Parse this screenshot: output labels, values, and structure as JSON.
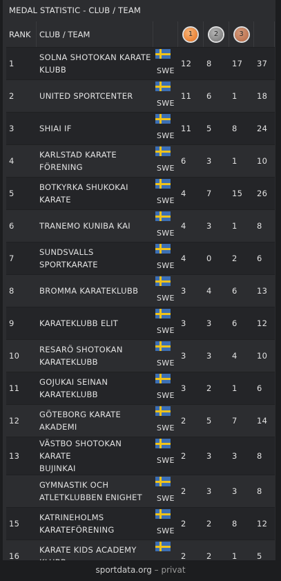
{
  "title": "MEDAL STATISTIC - CLUB / TEAM",
  "headers": {
    "rank": "RANK",
    "team": "CLUB / TEAM",
    "gold": "1",
    "silver": "2",
    "bronze": "3"
  },
  "medal_colors": {
    "gold": "#e46d18",
    "silver": "#6f6f6f",
    "bronze": "#b4643f"
  },
  "flag_icon": "sweden-flag-icon",
  "rows": [
    {
      "rank": "1",
      "team_lines": [
        "SOLNA SHOTOKAN KARATE",
        "KLUBB"
      ],
      "nation": "SWE",
      "gold": "12",
      "silver": "8",
      "bronze": "17",
      "total": "37"
    },
    {
      "rank": "2",
      "team_lines": [
        "UNITED SPORTCENTER"
      ],
      "nation": "SWE",
      "gold": "11",
      "silver": "6",
      "bronze": "1",
      "total": "18"
    },
    {
      "rank": "3",
      "team_lines": [
        "SHIAI IF"
      ],
      "nation": "SWE",
      "gold": "11",
      "silver": "5",
      "bronze": "8",
      "total": "24"
    },
    {
      "rank": "4",
      "team_lines": [
        "KARLSTAD KARATE",
        "FÖRENING"
      ],
      "nation": "SWE",
      "gold": "6",
      "silver": "3",
      "bronze": "1",
      "total": "10"
    },
    {
      "rank": "5",
      "team_lines": [
        "BOTKYRKA SHUKOKAI",
        "KARATE"
      ],
      "nation": "SWE",
      "gold": "4",
      "silver": "7",
      "bronze": "15",
      "total": "26"
    },
    {
      "rank": "6",
      "team_lines": [
        "TRANEMO KUNIBA KAI"
      ],
      "nation": "SWE",
      "gold": "4",
      "silver": "3",
      "bronze": "1",
      "total": "8"
    },
    {
      "rank": "7",
      "team_lines": [
        "SUNDSVALLS SPORTKARATE"
      ],
      "nation": "SWE",
      "gold": "4",
      "silver": "0",
      "bronze": "2",
      "total": "6"
    },
    {
      "rank": "8",
      "team_lines": [
        "BROMMA KARATEKLUBB"
      ],
      "nation": "SWE",
      "gold": "3",
      "silver": "4",
      "bronze": "6",
      "total": "13"
    },
    {
      "rank": "9",
      "team_lines": [
        "KARATEKLUBB ELIT"
      ],
      "nation": "SWE",
      "gold": "3",
      "silver": "3",
      "bronze": "6",
      "total": "12"
    },
    {
      "rank": "10",
      "team_lines": [
        "RESARÖ SHOTOKAN",
        "KARATEKLUBB"
      ],
      "nation": "SWE",
      "gold": "3",
      "silver": "3",
      "bronze": "4",
      "total": "10"
    },
    {
      "rank": "11",
      "team_lines": [
        "GOJUKAI SEINAN",
        "KARATEKLUBB"
      ],
      "nation": "SWE",
      "gold": "3",
      "silver": "2",
      "bronze": "1",
      "total": "6"
    },
    {
      "rank": "12",
      "team_lines": [
        "GÖTEBORG KARATE",
        "AKADEMI"
      ],
      "nation": "SWE",
      "gold": "2",
      "silver": "5",
      "bronze": "7",
      "total": "14"
    },
    {
      "rank": "13",
      "team_lines": [
        "VÄSTBO SHOTOKAN KARATE",
        "BUJINKAI"
      ],
      "nation": "SWE",
      "gold": "2",
      "silver": "3",
      "bronze": "3",
      "total": "8"
    },
    {
      "rank": "",
      "team_lines": [
        "GYMNASTIK OCH",
        "ATLETKLUBBEN ENIGHET"
      ],
      "nation": "SWE",
      "gold": "2",
      "silver": "3",
      "bronze": "3",
      "total": "8"
    },
    {
      "rank": "15",
      "team_lines": [
        "KATRINEHOLMS",
        "KARATEFÖRENING"
      ],
      "nation": "SWE",
      "gold": "2",
      "silver": "2",
      "bronze": "8",
      "total": "12"
    },
    {
      "rank": "16",
      "team_lines": [
        "KARATE KIDS ACADEMY",
        "KLUBB"
      ],
      "nation": "SWE",
      "gold": "2",
      "silver": "2",
      "bronze": "1",
      "total": "5"
    }
  ],
  "footer": {
    "brand": "sportdata.org",
    "suffix": "– privat"
  }
}
